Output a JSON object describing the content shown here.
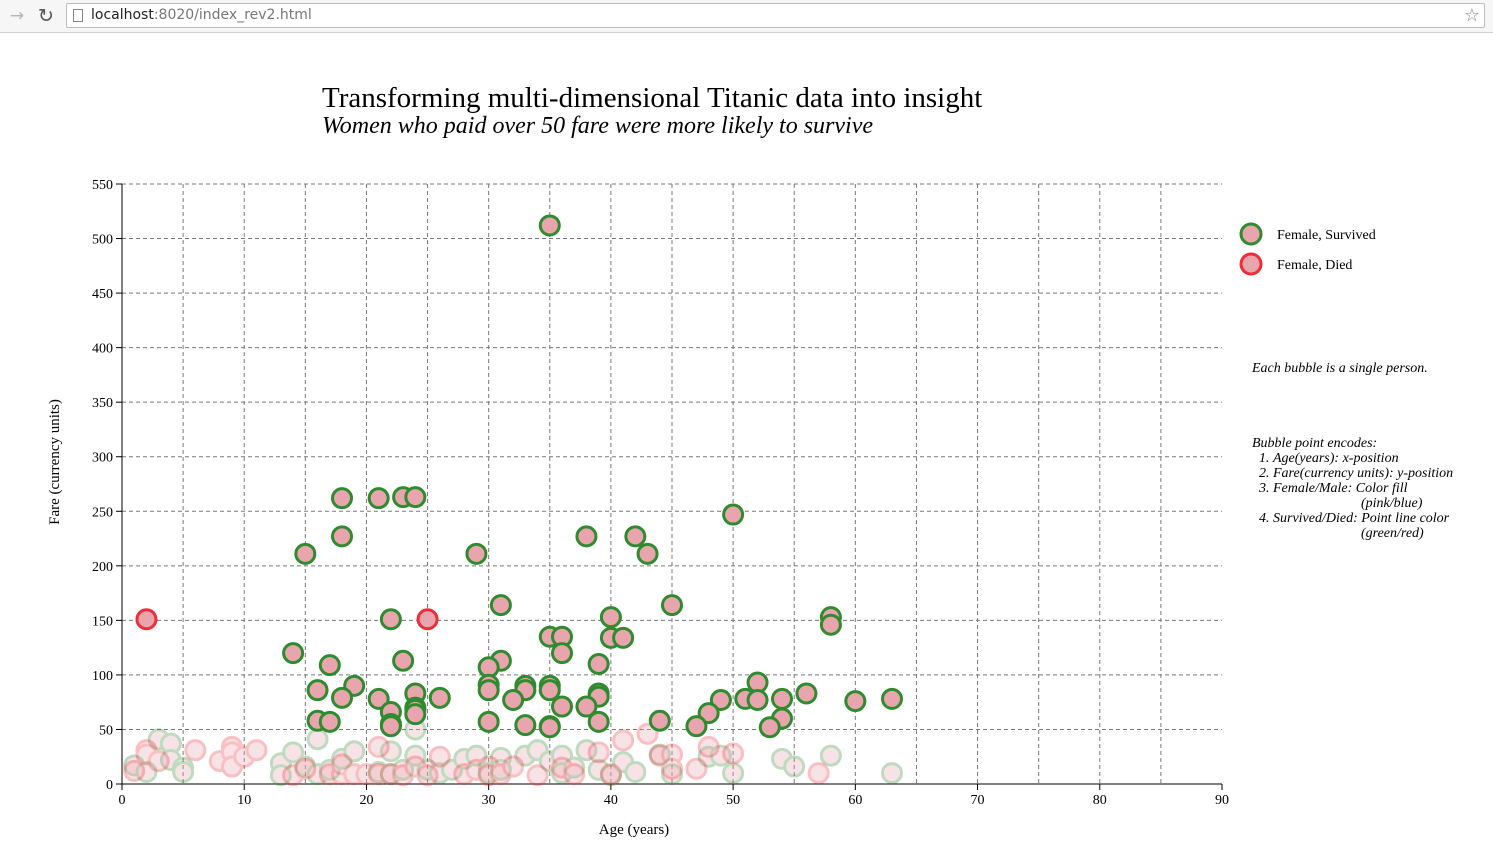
{
  "browser": {
    "url_host": "localhost",
    "url_rest": ":8020/index_rev2.html",
    "back_icon": "arrow-left-icon",
    "reload_icon": "reload-icon",
    "star_icon": "star-icon"
  },
  "title": "Transforming multi-dimensional Titanic data into insight",
  "subtitle": "Women who paid over 50 fare were more likely to survive",
  "notes": {
    "each_bubble": "Each bubble is a single person.",
    "encodes_heading": "Bubble point encodes:",
    "items": [
      {
        "text": "Age(years): x-position",
        "cont": ""
      },
      {
        "text": "Fare(currency units): y-position",
        "cont": ""
      },
      {
        "text": "Female/Male: Color fill",
        "cont": "(pink/blue)"
      },
      {
        "text": "Survived/Died: Point line color",
        "cont": "(green/red)"
      }
    ]
  },
  "colors": {
    "fill": "#e8a5ad",
    "survived": "#2e8b2e",
    "died": "#ee2d3a",
    "grid": "#7a7a7a"
  },
  "chart_data": {
    "type": "scatter",
    "xlabel": "Age (years)",
    "ylabel": "Fare (currency units)",
    "xlim": [
      0,
      90
    ],
    "ylim": [
      0,
      550
    ],
    "xticks": [
      0,
      10,
      20,
      30,
      40,
      50,
      60,
      70,
      80,
      90
    ],
    "yticks": [
      0,
      50,
      100,
      150,
      200,
      250,
      300,
      350,
      400,
      450,
      500,
      550
    ],
    "grid": true,
    "legend_position": "top-right",
    "legend": [
      {
        "label": "Female, Survived",
        "outline": "survived"
      },
      {
        "label": "Female, Died",
        "outline": "died"
      }
    ],
    "series": [
      {
        "name": "Female, Survived",
        "emphasis": "fare over 50",
        "points": [
          [
            35,
            512
          ],
          [
            18,
            262
          ],
          [
            21,
            262
          ],
          [
            23,
            263
          ],
          [
            24,
            263
          ],
          [
            50,
            247
          ],
          [
            18,
            227
          ],
          [
            38,
            227
          ],
          [
            42,
            227
          ],
          [
            15,
            211
          ],
          [
            29,
            211
          ],
          [
            43,
            211
          ],
          [
            31,
            164
          ],
          [
            45,
            164
          ],
          [
            22,
            151
          ],
          [
            40,
            153
          ],
          [
            58,
            153
          ],
          [
            58,
            146
          ],
          [
            35,
            135
          ],
          [
            36,
            135
          ],
          [
            40,
            134
          ],
          [
            41,
            134
          ],
          [
            14,
            120
          ],
          [
            36,
            120
          ],
          [
            31,
            113
          ],
          [
            23,
            113
          ],
          [
            17,
            109
          ],
          [
            30,
            107
          ],
          [
            39,
            110
          ],
          [
            52,
            93
          ],
          [
            19,
            90
          ],
          [
            33,
            90
          ],
          [
            35,
            90
          ],
          [
            30,
            91
          ],
          [
            16,
            86
          ],
          [
            30,
            86
          ],
          [
            33,
            86
          ],
          [
            35,
            86
          ],
          [
            24,
            83
          ],
          [
            39,
            83
          ],
          [
            56,
            83
          ],
          [
            39,
            80
          ],
          [
            18,
            79
          ],
          [
            21,
            78
          ],
          [
            26,
            79
          ],
          [
            32,
            77
          ],
          [
            49,
            77
          ],
          [
            51,
            78
          ],
          [
            52,
            77
          ],
          [
            54,
            78
          ],
          [
            60,
            76
          ],
          [
            63,
            78
          ],
          [
            24,
            70
          ],
          [
            24,
            68
          ],
          [
            36,
            71
          ],
          [
            38,
            71
          ],
          [
            22,
            66
          ],
          [
            48,
            65
          ],
          [
            24,
            64
          ],
          [
            16,
            58
          ],
          [
            17,
            57
          ],
          [
            30,
            57
          ],
          [
            39,
            57
          ],
          [
            44,
            58
          ],
          [
            54,
            60
          ],
          [
            22,
            55
          ],
          [
            22,
            53
          ],
          [
            33,
            54
          ],
          [
            35,
            53
          ],
          [
            35,
            52
          ],
          [
            47,
            53
          ],
          [
            53,
            52
          ]
        ]
      },
      {
        "name": "Female, Died",
        "emphasis": "fare over 50",
        "points": [
          [
            2,
            151
          ],
          [
            25,
            151
          ]
        ]
      },
      {
        "name": "Female, Survived",
        "emphasis": "fare 50 or less",
        "points": [
          [
            1,
            17
          ],
          [
            2,
            11
          ],
          [
            3,
            41
          ],
          [
            4,
            37
          ],
          [
            4,
            22
          ],
          [
            5,
            15
          ],
          [
            5,
            11
          ],
          [
            13,
            19
          ],
          [
            13,
            8
          ],
          [
            14,
            29
          ],
          [
            15,
            16
          ],
          [
            16,
            41
          ],
          [
            16,
            9
          ],
          [
            17,
            13
          ],
          [
            18,
            23
          ],
          [
            19,
            30
          ],
          [
            21,
            11
          ],
          [
            22,
            30
          ],
          [
            22,
            9
          ],
          [
            23,
            13
          ],
          [
            24,
            26
          ],
          [
            24,
            50
          ],
          [
            25,
            13
          ],
          [
            26,
            10
          ],
          [
            27,
            13
          ],
          [
            28,
            23
          ],
          [
            29,
            26
          ],
          [
            30,
            10
          ],
          [
            31,
            24
          ],
          [
            31,
            13
          ],
          [
            33,
            26
          ],
          [
            34,
            31
          ],
          [
            35,
            21
          ],
          [
            36,
            26
          ],
          [
            36,
            10
          ],
          [
            37,
            15
          ],
          [
            38,
            31
          ],
          [
            39,
            13
          ],
          [
            40,
            8
          ],
          [
            41,
            20
          ],
          [
            42,
            11
          ],
          [
            44,
            27
          ],
          [
            45,
            9
          ],
          [
            48,
            25
          ],
          [
            49,
            26
          ],
          [
            50,
            10
          ],
          [
            54,
            23
          ],
          [
            55,
            16
          ],
          [
            58,
            26
          ],
          [
            63,
            10
          ]
        ]
      },
      {
        "name": "Female, Died",
        "emphasis": "fare 50 or less",
        "points": [
          [
            1,
            12
          ],
          [
            2,
            31
          ],
          [
            2,
            27
          ],
          [
            3,
            21
          ],
          [
            6,
            31
          ],
          [
            8,
            21
          ],
          [
            9,
            34
          ],
          [
            9,
            29
          ],
          [
            9,
            16
          ],
          [
            10,
            25
          ],
          [
            11,
            31
          ],
          [
            14,
            8
          ],
          [
            15,
            14
          ],
          [
            17,
            9
          ],
          [
            18,
            9
          ],
          [
            18,
            18
          ],
          [
            19,
            9
          ],
          [
            20,
            9
          ],
          [
            21,
            34
          ],
          [
            21,
            9
          ],
          [
            22,
            9
          ],
          [
            23,
            8
          ],
          [
            24,
            16
          ],
          [
            25,
            8
          ],
          [
            26,
            25
          ],
          [
            28,
            9
          ],
          [
            29,
            13
          ],
          [
            30,
            16
          ],
          [
            30,
            8
          ],
          [
            31,
            9
          ],
          [
            32,
            16
          ],
          [
            34,
            8
          ],
          [
            36,
            15
          ],
          [
            37,
            9
          ],
          [
            39,
            29
          ],
          [
            40,
            9
          ],
          [
            41,
            40
          ],
          [
            43,
            46
          ],
          [
            44,
            26
          ],
          [
            45,
            27
          ],
          [
            45,
            14
          ],
          [
            47,
            14
          ],
          [
            48,
            34
          ],
          [
            50,
            28
          ],
          [
            57,
            10
          ]
        ]
      }
    ]
  }
}
